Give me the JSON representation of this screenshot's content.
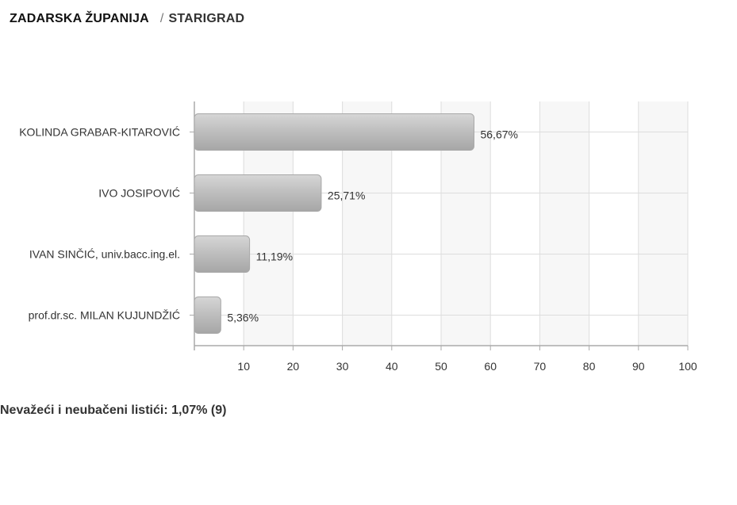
{
  "breadcrumb": {
    "region": "ZADARSKA ŽUPANIJA",
    "separator": "/",
    "place": "STARIGRAD"
  },
  "chart_data": {
    "type": "bar",
    "orientation": "horizontal",
    "categories": [
      "KOLINDA GRABAR-KITAROVIĆ",
      "IVO JOSIPOVIĆ",
      "IVAN SINČIĆ, univ.bacc.ing.el.",
      "prof.dr.sc. MILAN KUJUNDŽIĆ"
    ],
    "values": [
      56.67,
      25.71,
      11.19,
      5.36
    ],
    "value_labels": [
      "56,67%",
      "25,71%",
      "11,19%",
      "5,36%"
    ],
    "xlim": [
      0,
      100
    ],
    "xticks": [
      10,
      20,
      30,
      40,
      50,
      60,
      70,
      80,
      90,
      100
    ],
    "grid": true,
    "title": "",
    "xlabel": "",
    "ylabel": "",
    "colors": {
      "bar_top": "#d6d6d6",
      "bar_mid": "#bdbdbd",
      "bar_bottom": "#a6a6a6",
      "grid": "#dddddd",
      "band": "#f7f7f7",
      "axis": "#aaaaaa"
    }
  },
  "footer": {
    "invalid_ballots": "Nevažeći i neubačeni listići: 1,07% (9)"
  }
}
